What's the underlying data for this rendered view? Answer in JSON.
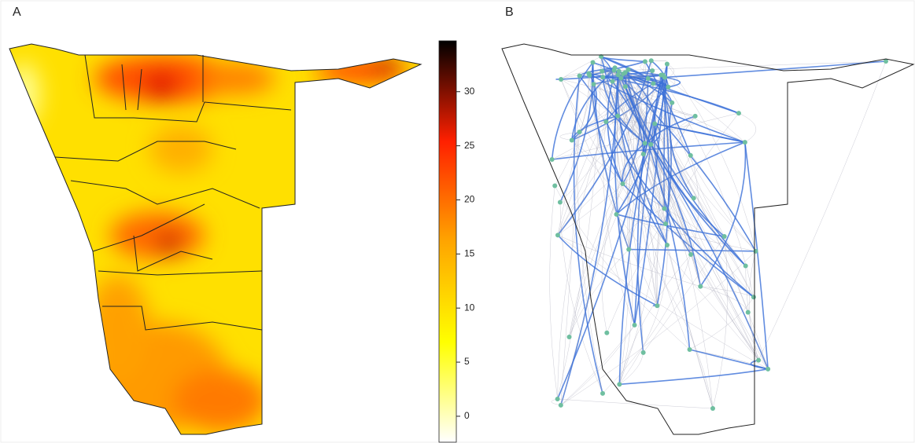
{
  "panels": [
    {
      "label": "A"
    },
    {
      "label": "B"
    }
  ],
  "colorbar": {
    "lim": [
      -2.4,
      34.7
    ],
    "ticks": [
      0,
      5,
      10,
      15,
      20,
      25,
      30
    ],
    "colors": [
      "#ffffff",
      "#ffff00",
      "#ffa500",
      "#ff2000",
      "#000000"
    ]
  }
}
